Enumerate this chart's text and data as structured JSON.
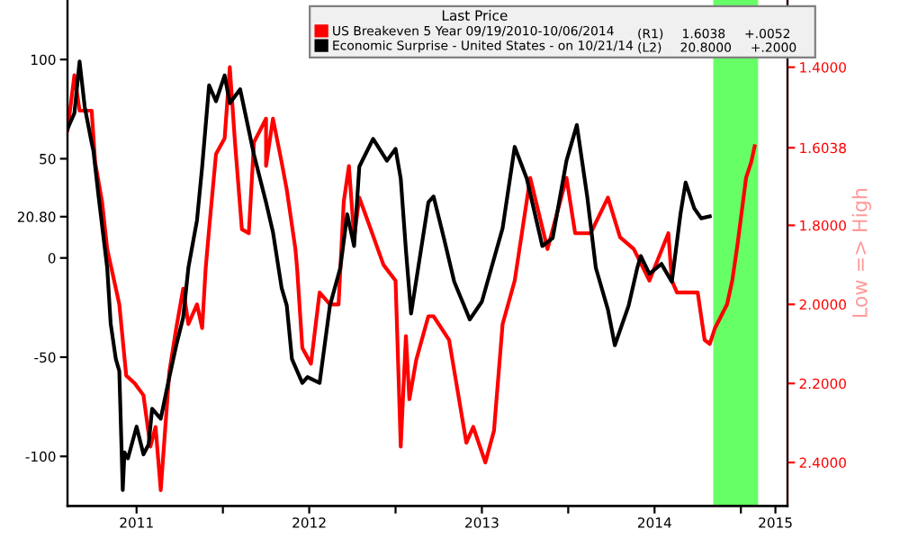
{
  "chart_data": {
    "type": "line",
    "legend": "top right",
    "legend_title": "Last Price",
    "grid": false,
    "y2label": "Low => High",
    "xlim": [
      2011.1,
      2015.27
    ],
    "xticks": [
      {
        "value": 2011.5,
        "label": "2011"
      },
      {
        "value": 2012,
        "label": null
      },
      {
        "value": 2012.5,
        "label": "2012"
      },
      {
        "value": 2013,
        "label": null
      },
      {
        "value": 2013.5,
        "label": "2013"
      },
      {
        "value": 2014,
        "label": null
      },
      {
        "value": 2014.5,
        "label": "2014"
      },
      {
        "value": 2015,
        "label": null
      },
      {
        "value": 2015.2,
        "label": "2015"
      }
    ],
    "ylim": [
      -125,
      130
    ],
    "yticks": [
      -100,
      -50,
      0,
      {
        "value": 20.8,
        "label": "20.80"
      },
      50,
      100
    ],
    "y2lim": [
      2.51,
      1.23
    ],
    "y2ticks": [
      {
        "value": 1.4,
        "label": "1.4000"
      },
      {
        "value": 1.6038,
        "label": "1.6038"
      },
      {
        "value": 1.8,
        "label": "1.8000"
      },
      {
        "value": 2.0,
        "label": "2.0000"
      },
      {
        "value": 2.2,
        "label": "2.2000"
      },
      {
        "value": 2.4,
        "label": "2.4000"
      }
    ],
    "bands": [
      {
        "axis": "x",
        "from": 2014.84,
        "to": 2015.1,
        "color": "#66ff66"
      }
    ],
    "annotations": [
      "(R1)",
      "1.6038",
      "+.0052",
      "(L2)",
      "20.8000",
      "+.2000"
    ],
    "series": [
      {
        "name": "US Breakeven 5 Year 09/19/2010-10/06/2014",
        "color": "#ff0000",
        "axis": "y2",
        "x": [
          2011.1,
          2011.14,
          2011.17,
          2011.24,
          2011.26,
          2011.3,
          2011.33,
          2011.4,
          2011.44,
          2011.49,
          2011.54,
          2011.58,
          2011.61,
          2011.64,
          2011.69,
          2011.73,
          2011.77,
          2011.8,
          2011.85,
          2011.88,
          2011.9,
          2011.92,
          2011.96,
          2012.01,
          2012.04,
          2012.07,
          2012.11,
          2012.15,
          2012.18,
          2012.25,
          2012.25,
          2012.29,
          2012.34,
          2012.37,
          2012.42,
          2012.43,
          2012.46,
          2012.51,
          2012.56,
          2012.62,
          2012.67,
          2012.7,
          2012.73,
          2012.76,
          2012.79,
          2012.84,
          2012.93,
          2013.0,
          2013.03,
          2013.06,
          2013.08,
          2013.12,
          2013.19,
          2013.22,
          2013.31,
          2013.41,
          2013.45,
          2013.52,
          2013.57,
          2013.62,
          2013.69,
          2013.78,
          2013.88,
          2013.99,
          2014.04,
          2014.13,
          2014.23,
          2014.3,
          2014.38,
          2014.47,
          2014.58,
          2014.6,
          2014.63,
          2014.75,
          2014.79,
          2014.82,
          2014.85,
          2014.92,
          2014.95,
          2014.98,
          2015.03,
          2015.06,
          2015.08
        ],
        "values": [
          1.56,
          1.42,
          1.51,
          1.51,
          1.64,
          1.74,
          1.86,
          2.0,
          2.18,
          2.2,
          2.23,
          2.36,
          2.31,
          2.47,
          2.17,
          2.06,
          1.96,
          2.05,
          2.0,
          2.06,
          1.91,
          1.81,
          1.62,
          1.58,
          1.4,
          1.59,
          1.81,
          1.82,
          1.59,
          1.53,
          1.65,
          1.53,
          1.64,
          1.71,
          1.86,
          1.91,
          2.11,
          2.15,
          1.97,
          2.0,
          2.0,
          1.74,
          1.65,
          1.83,
          1.73,
          1.79,
          1.9,
          1.94,
          2.36,
          2.08,
          2.24,
          2.14,
          2.03,
          2.03,
          2.09,
          2.35,
          2.31,
          2.4,
          2.32,
          2.05,
          1.94,
          1.68,
          1.86,
          1.68,
          1.82,
          1.82,
          1.73,
          1.83,
          1.86,
          1.94,
          1.82,
          1.94,
          1.97,
          1.97,
          2.09,
          2.1,
          2.06,
          2.0,
          1.94,
          1.85,
          1.68,
          1.64,
          1.6
        ]
      },
      {
        "name": "Economic Surprise - United States - on 10/21/14",
        "color": "#000000",
        "axis": "y",
        "x": [
          2011.1,
          2011.14,
          2011.17,
          2011.2,
          2011.24,
          2011.25,
          2011.28,
          2011.33,
          2011.35,
          2011.38,
          2011.4,
          2011.42,
          2011.43,
          2011.45,
          2011.5,
          2011.54,
          2011.57,
          2011.59,
          2011.64,
          2011.69,
          2011.73,
          2011.77,
          2011.8,
          2011.85,
          2011.88,
          2011.92,
          2011.96,
          2012.01,
          2012.04,
          2012.1,
          2012.18,
          2012.25,
          2012.29,
          2012.34,
          2012.37,
          2012.4,
          2012.46,
          2012.49,
          2012.56,
          2012.62,
          2012.68,
          2012.72,
          2012.76,
          2012.79,
          2012.87,
          2012.95,
          2013.0,
          2013.03,
          2013.06,
          2013.09,
          2013.19,
          2013.22,
          2013.28,
          2013.34,
          2013.43,
          2013.5,
          2013.62,
          2013.69,
          2013.76,
          2013.85,
          2013.91,
          2013.99,
          2014.05,
          2014.11,
          2014.16,
          2014.23,
          2014.27,
          2014.35,
          2014.4,
          2014.42,
          2014.47,
          2014.54,
          2014.6,
          2014.65,
          2014.68,
          2014.73,
          2014.77,
          2014.82
        ],
        "values": [
          65,
          73,
          99,
          76,
          58,
          54,
          31,
          -5,
          -33,
          -51,
          -57,
          -117,
          -98,
          -101,
          -85,
          -99,
          -94,
          -76,
          -81,
          -60,
          -44,
          -30,
          -5,
          19,
          46,
          87,
          79,
          92,
          78,
          85,
          52,
          28,
          13,
          -15,
          -24,
          -51,
          -63,
          -60,
          -63,
          -24,
          -5,
          22,
          6,
          46,
          60,
          49,
          55,
          40,
          4,
          -28,
          28,
          31,
          10,
          -12,
          -31,
          -22,
          15,
          56,
          40,
          6,
          10,
          49,
          67,
          31,
          -5,
          -26,
          -44,
          -24,
          -5,
          1,
          -8,
          -3,
          -12,
          22,
          38,
          25,
          20,
          21
        ]
      }
    ]
  }
}
